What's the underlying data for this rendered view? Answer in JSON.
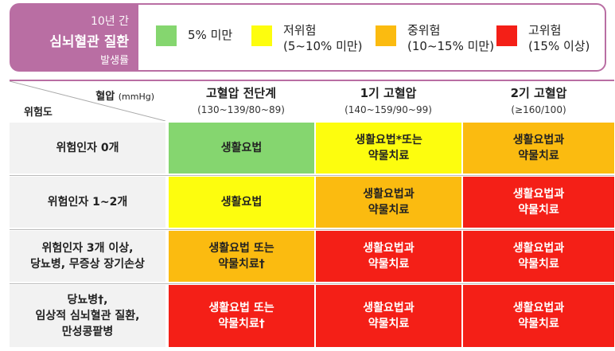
{
  "legend": {
    "title": [
      "10년 간",
      "심뇌혈관 질환",
      "발생률"
    ],
    "items": [
      {
        "color": "#85d66f",
        "lines": [
          "5% 미만"
        ]
      },
      {
        "color": "#fdfd0e",
        "lines": [
          "저위험",
          "(5~10% 미만)"
        ]
      },
      {
        "color": "#fbbb10",
        "lines": [
          "중위험",
          "(10~15% 미만)"
        ]
      },
      {
        "color": "#f41f17",
        "lines": [
          "고위험",
          "(15% 이상)"
        ]
      }
    ]
  },
  "header": {
    "bp_label": "혈압",
    "bp_unit": "(mmHg)",
    "risk_label": "위험도",
    "columns": [
      {
        "title": "고혈압 전단계",
        "range": "(130~139/80~89)"
      },
      {
        "title": "1기 고혈압",
        "range": "(140~159/90~99)"
      },
      {
        "title": "2기 고혈압",
        "range": "(≥160/100)"
      }
    ]
  },
  "rows": [
    {
      "label": [
        "위험인자 0개"
      ],
      "cells": [
        {
          "lines": [
            "생활요법"
          ],
          "color": "#85d66f",
          "text_color": "#222222"
        },
        {
          "lines": [
            "생활요법*또는",
            "약물치료"
          ],
          "color": "#fdfd0e",
          "text_color": "#222222"
        },
        {
          "lines": [
            "생활요법과",
            "약물치료"
          ],
          "color": "#fbbb10",
          "text_color": "#222222"
        }
      ]
    },
    {
      "label": [
        "위험인자 1~2개"
      ],
      "cells": [
        {
          "lines": [
            "생활요법"
          ],
          "color": "#fdfd0e",
          "text_color": "#222222"
        },
        {
          "lines": [
            "생활요법과",
            "약물치료"
          ],
          "color": "#fbbb10",
          "text_color": "#222222"
        },
        {
          "lines": [
            "생활요법과",
            "약물치료"
          ],
          "color": "#f41f17",
          "text_color": "#ffffff"
        }
      ]
    },
    {
      "label": [
        "위험인자 3개 이상,",
        "당뇨병, 무증상 장기손상"
      ],
      "cells": [
        {
          "lines": [
            "생활요법 또는",
            "약물치료†"
          ],
          "color": "#fbbb10",
          "text_color": "#222222"
        },
        {
          "lines": [
            "생활요법과",
            "약물치료"
          ],
          "color": "#f41f17",
          "text_color": "#ffffff"
        },
        {
          "lines": [
            "생활요법과",
            "약물치료"
          ],
          "color": "#f41f17",
          "text_color": "#ffffff"
        }
      ]
    },
    {
      "label": [
        "당뇨병†,",
        "임상적 심뇌혈관 질환,",
        "만성콩팥병"
      ],
      "cells": [
        {
          "lines": [
            "생활요법 또는",
            "약물치료†"
          ],
          "color": "#f41f17",
          "text_color": "#ffffff"
        },
        {
          "lines": [
            "생활요법과",
            "약물치료"
          ],
          "color": "#f41f17",
          "text_color": "#ffffff"
        },
        {
          "lines": [
            "생활요법과",
            "약물치료"
          ],
          "color": "#f41f17",
          "text_color": "#ffffff"
        }
      ]
    }
  ]
}
